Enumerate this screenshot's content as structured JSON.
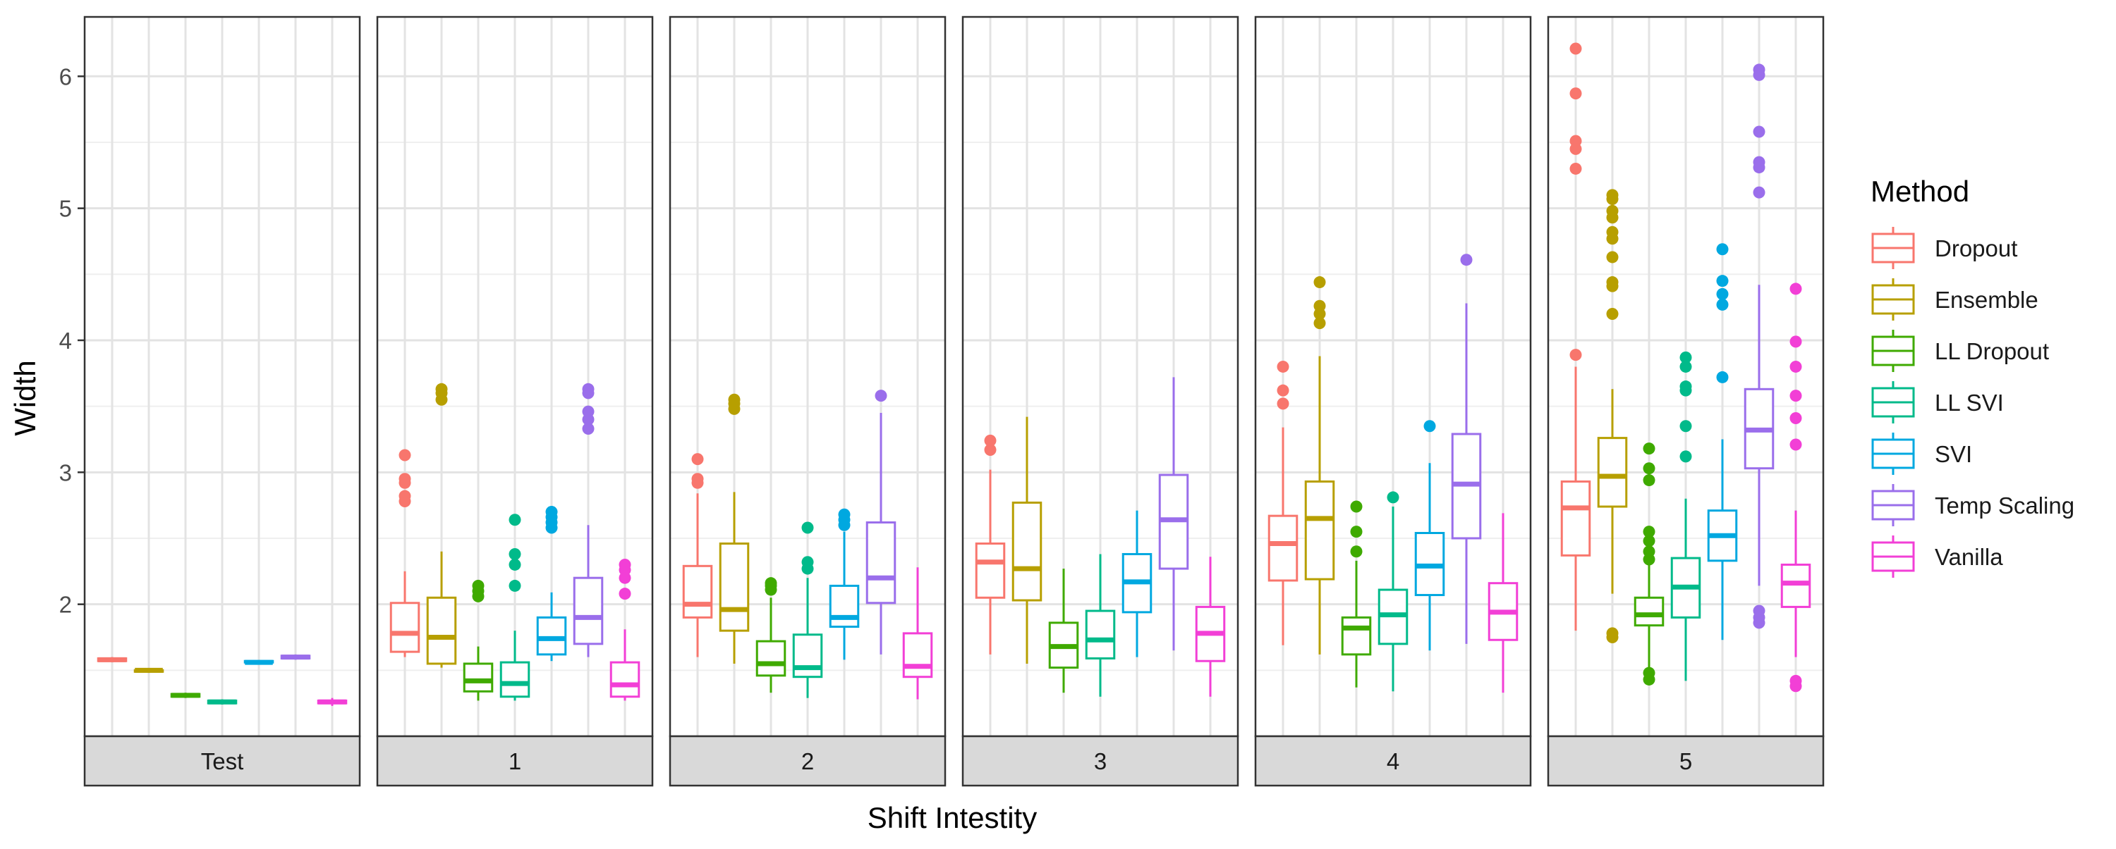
{
  "chart_data": {
    "type": "box",
    "xlabel": "Shift Intestity",
    "ylabel": "Width",
    "ylim": [
      1.0,
      6.45
    ],
    "yticks": [
      2,
      3,
      4,
      5,
      6
    ],
    "facets": [
      "Test",
      "1",
      "2",
      "3",
      "4",
      "5"
    ],
    "legend": {
      "title": "Method",
      "position": "right"
    },
    "series": [
      {
        "name": "Dropout",
        "color": "#F8766D"
      },
      {
        "name": "Ensemble",
        "color": "#B79F00"
      },
      {
        "name": "LL Dropout",
        "color": "#3FAA00"
      },
      {
        "name": "LL SVI",
        "color": "#00BA8A"
      },
      {
        "name": "SVI",
        "color": "#00A8E0"
      },
      {
        "name": "Temp Scaling",
        "color": "#9A6EEB"
      },
      {
        "name": "Vanilla",
        "color": "#F23FD6"
      }
    ],
    "panels": [
      {
        "facet": "Test",
        "boxes": [
          {
            "min": 1.56,
            "q1": 1.57,
            "median": 1.58,
            "q3": 1.59,
            "max": 1.6,
            "outliers": []
          },
          {
            "min": 1.48,
            "q1": 1.49,
            "median": 1.5,
            "q3": 1.5,
            "max": 1.51,
            "outliers": []
          },
          {
            "min": 1.29,
            "q1": 1.3,
            "median": 1.31,
            "q3": 1.32,
            "max": 1.33,
            "outliers": []
          },
          {
            "min": 1.24,
            "q1": 1.25,
            "median": 1.26,
            "q3": 1.27,
            "max": 1.28,
            "outliers": []
          },
          {
            "min": 1.55,
            "q1": 1.56,
            "median": 1.56,
            "q3": 1.57,
            "max": 1.57,
            "outliers": []
          },
          {
            "min": 1.58,
            "q1": 1.59,
            "median": 1.6,
            "q3": 1.61,
            "max": 1.62,
            "outliers": []
          },
          {
            "min": 1.23,
            "q1": 1.25,
            "median": 1.26,
            "q3": 1.27,
            "max": 1.29,
            "outliers": []
          }
        ]
      },
      {
        "facet": "1",
        "boxes": [
          {
            "min": 1.6,
            "q1": 1.64,
            "median": 1.78,
            "q3": 2.01,
            "max": 2.25,
            "outliers": [
              2.78,
              2.82,
              2.92,
              2.95,
              3.13
            ]
          },
          {
            "min": 1.52,
            "q1": 1.55,
            "median": 1.75,
            "q3": 2.05,
            "max": 2.4,
            "outliers": [
              3.55,
              3.6,
              3.63
            ]
          },
          {
            "min": 1.27,
            "q1": 1.34,
            "median": 1.42,
            "q3": 1.55,
            "max": 1.68,
            "outliers": [
              2.06,
              2.1,
              2.14
            ]
          },
          {
            "min": 1.27,
            "q1": 1.3,
            "median": 1.4,
            "q3": 1.56,
            "max": 1.8,
            "outliers": [
              2.14,
              2.3,
              2.38,
              2.64
            ]
          },
          {
            "min": 1.57,
            "q1": 1.62,
            "median": 1.74,
            "q3": 1.9,
            "max": 2.09,
            "outliers": [
              2.58,
              2.62,
              2.66,
              2.7
            ]
          },
          {
            "min": 1.6,
            "q1": 1.7,
            "median": 1.9,
            "q3": 2.2,
            "max": 2.6,
            "outliers": [
              3.33,
              3.4,
              3.46,
              3.6,
              3.63
            ]
          },
          {
            "min": 1.27,
            "q1": 1.3,
            "median": 1.39,
            "q3": 1.56,
            "max": 1.81,
            "outliers": [
              2.08,
              2.2,
              2.26,
              2.3
            ]
          }
        ]
      },
      {
        "facet": "2",
        "boxes": [
          {
            "min": 1.6,
            "q1": 1.9,
            "median": 2.0,
            "q3": 2.29,
            "max": 2.84,
            "outliers": [
              2.92,
              2.95,
              3.1
            ]
          },
          {
            "min": 1.55,
            "q1": 1.8,
            "median": 1.96,
            "q3": 2.46,
            "max": 2.85,
            "outliers": [
              3.48,
              3.52,
              3.55
            ]
          },
          {
            "min": 1.33,
            "q1": 1.46,
            "median": 1.55,
            "q3": 1.72,
            "max": 2.05,
            "outliers": [
              2.11,
              2.14,
              2.16
            ]
          },
          {
            "min": 1.29,
            "q1": 1.45,
            "median": 1.52,
            "q3": 1.77,
            "max": 2.2,
            "outliers": [
              2.27,
              2.32,
              2.58
            ]
          },
          {
            "min": 1.58,
            "q1": 1.83,
            "median": 1.9,
            "q3": 2.14,
            "max": 2.55,
            "outliers": [
              2.6,
              2.64,
              2.68
            ]
          },
          {
            "min": 1.62,
            "q1": 2.01,
            "median": 2.2,
            "q3": 2.62,
            "max": 3.45,
            "outliers": [
              3.58
            ]
          },
          {
            "min": 1.28,
            "q1": 1.45,
            "median": 1.53,
            "q3": 1.78,
            "max": 2.28,
            "outliers": []
          }
        ]
      },
      {
        "facet": "3",
        "boxes": [
          {
            "min": 1.62,
            "q1": 2.05,
            "median": 2.32,
            "q3": 2.46,
            "max": 3.02,
            "outliers": [
              3.17,
              3.24
            ]
          },
          {
            "min": 1.55,
            "q1": 2.03,
            "median": 2.27,
            "q3": 2.77,
            "max": 3.42,
            "outliers": []
          },
          {
            "min": 1.33,
            "q1": 1.52,
            "median": 1.68,
            "q3": 1.86,
            "max": 2.27,
            "outliers": []
          },
          {
            "min": 1.3,
            "q1": 1.59,
            "median": 1.73,
            "q3": 1.95,
            "max": 2.38,
            "outliers": []
          },
          {
            "min": 1.6,
            "q1": 1.94,
            "median": 2.17,
            "q3": 2.38,
            "max": 2.71,
            "outliers": []
          },
          {
            "min": 1.65,
            "q1": 2.27,
            "median": 2.64,
            "q3": 2.98,
            "max": 3.72,
            "outliers": []
          },
          {
            "min": 1.3,
            "q1": 1.57,
            "median": 1.78,
            "q3": 1.98,
            "max": 2.36,
            "outliers": []
          }
        ]
      },
      {
        "facet": "4",
        "boxes": [
          {
            "min": 1.69,
            "q1": 2.18,
            "median": 2.46,
            "q3": 2.67,
            "max": 3.34,
            "outliers": [
              3.52,
              3.62,
              3.8
            ]
          },
          {
            "min": 1.62,
            "q1": 2.19,
            "median": 2.65,
            "q3": 2.93,
            "max": 3.88,
            "outliers": [
              4.13,
              4.2,
              4.26,
              4.44
            ]
          },
          {
            "min": 1.37,
            "q1": 1.62,
            "median": 1.82,
            "q3": 1.9,
            "max": 2.33,
            "outliers": [
              2.4,
              2.55,
              2.74
            ]
          },
          {
            "min": 1.34,
            "q1": 1.7,
            "median": 1.92,
            "q3": 2.11,
            "max": 2.74,
            "outliers": [
              2.81
            ]
          },
          {
            "min": 1.65,
            "q1": 2.07,
            "median": 2.29,
            "q3": 2.54,
            "max": 3.07,
            "outliers": [
              3.35
            ]
          },
          {
            "min": 1.7,
            "q1": 2.5,
            "median": 2.91,
            "q3": 3.29,
            "max": 4.28,
            "outliers": [
              4.61
            ]
          },
          {
            "min": 1.33,
            "q1": 1.73,
            "median": 1.94,
            "q3": 2.16,
            "max": 2.69,
            "outliers": []
          }
        ]
      },
      {
        "facet": "5",
        "boxes": [
          {
            "min": 1.8,
            "q1": 2.37,
            "median": 2.73,
            "q3": 2.93,
            "max": 3.8,
            "outliers": [
              3.89,
              5.3,
              5.45,
              5.51,
              5.87,
              6.21
            ]
          },
          {
            "min": 2.08,
            "q1": 2.74,
            "median": 2.97,
            "q3": 3.26,
            "max": 3.63,
            "outliers": [
              1.75,
              1.78,
              4.2,
              4.41,
              4.44,
              4.63,
              4.77,
              4.82,
              4.93,
              4.98,
              5.07,
              5.1
            ]
          },
          {
            "min": 1.5,
            "q1": 1.84,
            "median": 1.92,
            "q3": 2.05,
            "max": 2.3,
            "outliers": [
              1.43,
              1.48,
              2.34,
              2.4,
              2.48,
              2.55,
              2.94,
              3.03,
              3.18
            ]
          },
          {
            "min": 1.42,
            "q1": 1.9,
            "median": 2.13,
            "q3": 2.35,
            "max": 2.8,
            "outliers": [
              3.12,
              3.35,
              3.62,
              3.65,
              3.8,
              3.87
            ]
          },
          {
            "min": 1.73,
            "q1": 2.33,
            "median": 2.52,
            "q3": 2.71,
            "max": 3.25,
            "outliers": [
              3.72,
              4.27,
              4.35,
              4.45,
              4.69
            ]
          },
          {
            "min": 2.14,
            "q1": 3.03,
            "median": 3.32,
            "q3": 3.63,
            "max": 4.42,
            "outliers": [
              1.86,
              1.9,
              1.95,
              5.12,
              5.31,
              5.35,
              5.58,
              6.01,
              6.05
            ]
          },
          {
            "min": 1.6,
            "q1": 1.98,
            "median": 2.16,
            "q3": 2.3,
            "max": 2.71,
            "outliers": [
              1.38,
              1.42,
              3.21,
              3.41,
              3.58,
              3.8,
              3.99,
              4.39
            ]
          }
        ]
      }
    ]
  }
}
